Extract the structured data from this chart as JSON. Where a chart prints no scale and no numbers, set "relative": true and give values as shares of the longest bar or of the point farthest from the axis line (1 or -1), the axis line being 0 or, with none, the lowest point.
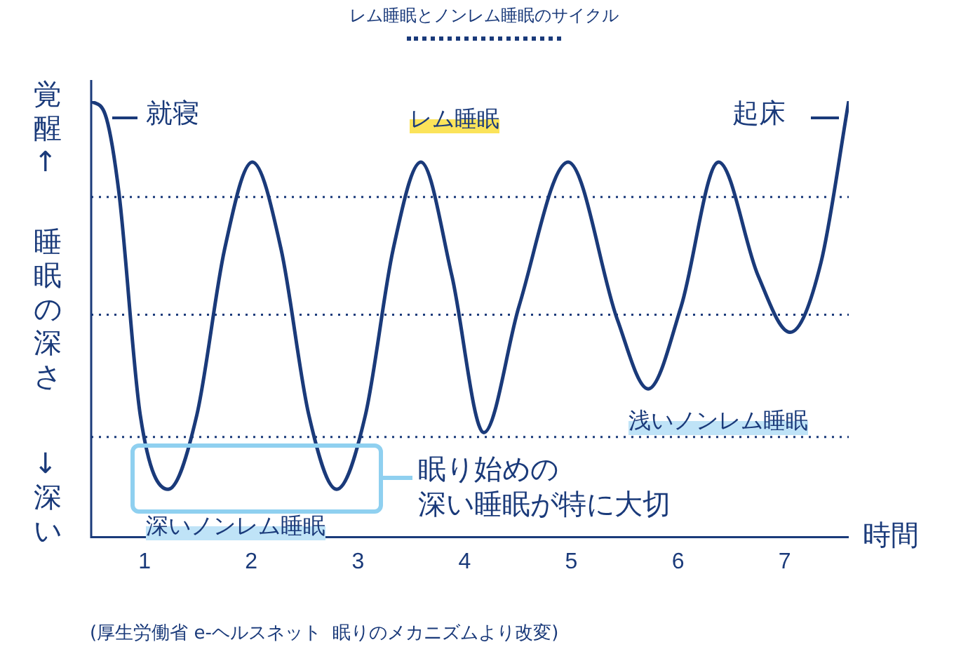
{
  "chart_data": {
    "type": "line",
    "title": "レム睡眠とノンレム睡眠のサイクル",
    "ylabel": "睡眠の深さ",
    "xlabel": "時間",
    "relative": true,
    "xlim": [
      0.5,
      7.6
    ],
    "xticks": [
      1,
      2,
      3,
      4,
      5,
      6,
      7
    ],
    "grid": false,
    "legend": false,
    "marker": "none",
    "line_style": "solid",
    "x": [
      0.5,
      0.63,
      0.76,
      0.96,
      1.22,
      1.49,
      1.75,
      2.01,
      2.28,
      2.54,
      2.8,
      3.07,
      3.33,
      3.59,
      3.88,
      4.18,
      4.51,
      4.97,
      5.43,
      5.72,
      6.03,
      6.38,
      6.75,
      7.05,
      7.34,
      7.6
    ],
    "series": [
      {
        "color": "#1a3a7a",
        "values": [
          1.0,
          0.97,
          0.79,
          0.28,
          0.11,
          0.28,
          0.66,
          0.86,
          0.66,
          0.28,
          0.11,
          0.28,
          0.66,
          0.86,
          0.6,
          0.24,
          0.53,
          0.86,
          0.5,
          0.34,
          0.53,
          0.86,
          0.6,
          0.47,
          0.63,
          1.0
        ]
      }
    ],
    "ref_lines": [
      {
        "axis": "y",
        "value": 0.78,
        "color": "#1a3a7a",
        "line_style": "dotted"
      },
      {
        "axis": "y",
        "value": 0.51,
        "color": "#1a3a7a",
        "line_style": "dotted"
      },
      {
        "axis": "y",
        "value": 0.23,
        "color": "#1a3a7a",
        "line_style": "dotted"
      }
    ],
    "annotations": [
      "覚醒↑",
      "↓深い",
      "就寝",
      "レム睡眠",
      "起床",
      "浅いノンレム睡眠",
      "深いノンレム睡眠",
      "眠り始めの",
      "深い睡眠が特に大切",
      "(厚生労働省 e-ヘルスネット  眠りのメカニズムより改変)"
    ]
  }
}
